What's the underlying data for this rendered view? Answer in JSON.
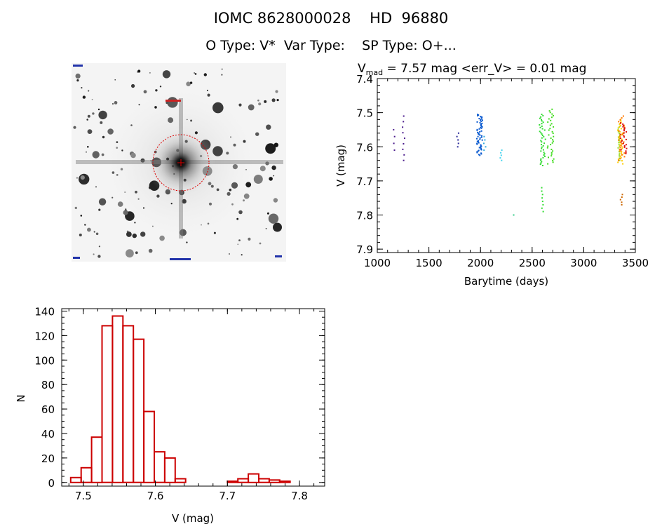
{
  "header": {
    "line1": "IOMC 8628000028    HD  96880",
    "line2": "O Type: V*  Var Type:    SP Type: O+..."
  },
  "colors": {
    "axis": "#000000",
    "hist_bar": "#cc0000",
    "aperture": "#dd0000"
  },
  "stamp": {
    "description_icon": "star-field-image"
  },
  "chart_data": [
    {
      "type": "scatter",
      "title_main": "V",
      "title_sub": "mad",
      "title_rest": " = 7.57 mag <err_V> = 0.01 mag",
      "xlabel": "Barytime (days)",
      "ylabel": "V (mag)",
      "xlim": [
        1000,
        3500
      ],
      "ylim": [
        7.91,
        7.4
      ],
      "xticks": [
        1000,
        1500,
        2000,
        2500,
        3000,
        3500
      ],
      "yticks": [
        7.4,
        7.5,
        7.6,
        7.7,
        7.8,
        7.9
      ],
      "ytick_labels": [
        "7.4",
        "7.5",
        "7.6",
        "7.7",
        "7.8",
        "7.9"
      ],
      "groups": [
        {
          "x": 1160,
          "y_min": 7.55,
          "y_max": 7.61,
          "n": 4,
          "color": "#4a1a8c"
        },
        {
          "x": 1255,
          "y_min": 7.51,
          "y_max": 7.64,
          "n": 9,
          "color": "#4a1a8c"
        },
        {
          "x": 1780,
          "y_min": 7.56,
          "y_max": 7.6,
          "n": 5,
          "color": "#2a2a9a"
        },
        {
          "x": 1990,
          "y_min": 7.505,
          "y_max": 7.625,
          "n": 60,
          "color": "#0a5ad0"
        },
        {
          "x": 2040,
          "y_min": 7.57,
          "y_max": 7.61,
          "n": 5,
          "color": "#33aadd"
        },
        {
          "x": 2200,
          "y_min": 7.61,
          "y_max": 7.64,
          "n": 5,
          "color": "#44d4ee"
        },
        {
          "x": 2330,
          "y_min": 7.8,
          "y_max": 7.81,
          "n": 1,
          "color": "#33cc88"
        },
        {
          "x": 2600,
          "y_min": 7.505,
          "y_max": 7.655,
          "n": 40,
          "color": "#33dd33"
        },
        {
          "x": 2600,
          "y_min": 7.72,
          "y_max": 7.79,
          "n": 8,
          "color": "#33dd33"
        },
        {
          "x": 2680,
          "y_min": 7.49,
          "y_max": 7.65,
          "n": 35,
          "color": "#44dd22"
        },
        {
          "x": 3340,
          "y_min": 7.54,
          "y_max": 7.64,
          "n": 20,
          "color": "#99dd22"
        },
        {
          "x": 3355,
          "y_min": 7.52,
          "y_max": 7.65,
          "n": 30,
          "color": "#ffcc00"
        },
        {
          "x": 3365,
          "y_min": 7.51,
          "y_max": 7.64,
          "n": 25,
          "color": "#ff7700"
        },
        {
          "x": 3365,
          "y_min": 7.74,
          "y_max": 7.77,
          "n": 5,
          "color": "#cc6600"
        },
        {
          "x": 3385,
          "y_min": 7.53,
          "y_max": 7.62,
          "n": 25,
          "color": "#dd1111"
        }
      ]
    },
    {
      "type": "bar",
      "xlabel": "V (mag)",
      "ylabel": "N",
      "xlim": [
        7.47,
        7.835
      ],
      "ylim": [
        -3,
        142
      ],
      "xticks": [
        7.5,
        7.6,
        7.7,
        7.8
      ],
      "xtick_labels": [
        "7.5",
        "7.6",
        "7.7",
        "7.8"
      ],
      "yticks": [
        0,
        20,
        40,
        60,
        80,
        100,
        120,
        140
      ],
      "bin_width": 0.0145,
      "bin_start": 7.4825,
      "counts": [
        4,
        12,
        37,
        128,
        136,
        128,
        117,
        58,
        25,
        20,
        3,
        0,
        0,
        0,
        0,
        1,
        3,
        7,
        3,
        2,
        1,
        0
      ]
    }
  ]
}
